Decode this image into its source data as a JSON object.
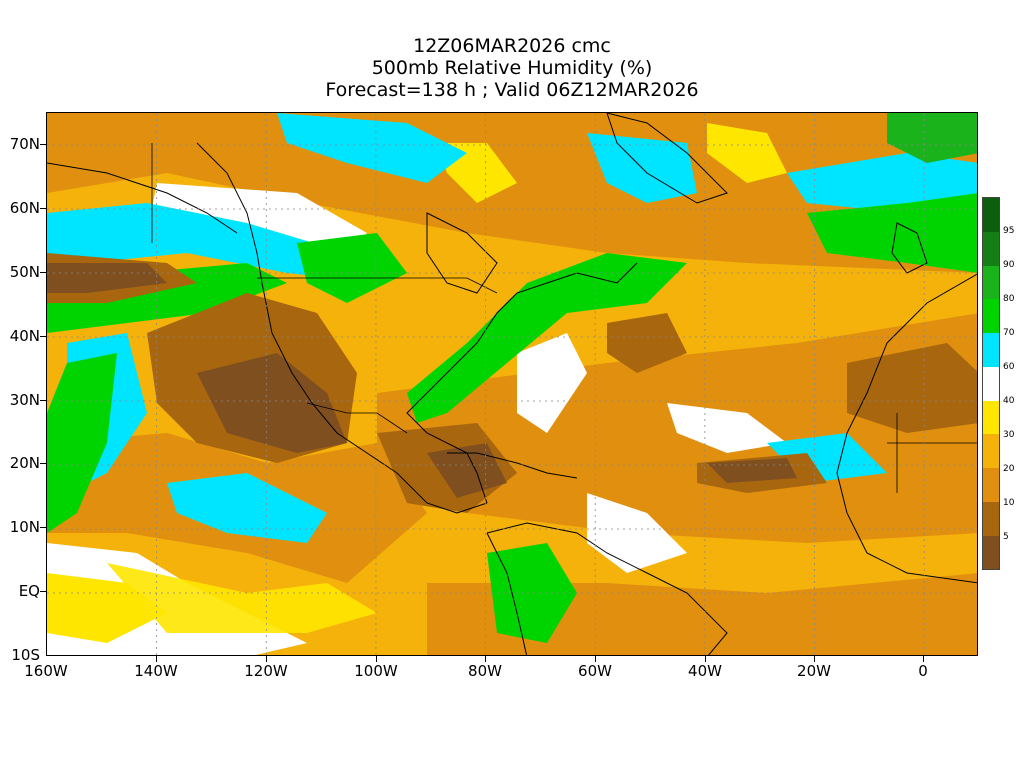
{
  "header": {
    "line1": "12Z06MAR2026 cmc",
    "line2": "500mb Relative Humidity (%)",
    "line3": "Forecast=138 h ; Valid 06Z12MAR2026"
  },
  "axes": {
    "lat_labels": [
      "70N",
      "60N",
      "50N",
      "40N",
      "30N",
      "20N",
      "10N",
      "EQ",
      "10S"
    ],
    "lon_labels": [
      "160W",
      "140W",
      "120W",
      "100W",
      "80W",
      "60W",
      "40W",
      "20W",
      "0"
    ]
  },
  "colorbar": {
    "labels": [
      "95",
      "90",
      "80",
      "70",
      "60",
      "40",
      "30",
      "20",
      "10",
      "5"
    ],
    "colors": [
      "#7f4f1f",
      "#a8660e",
      "#e0900e",
      "#f5b20a",
      "#ffe600",
      "#ffffff",
      "#00e5ff",
      "#00d400",
      "#1bb31b",
      "#157f15",
      "#0c5f0c"
    ]
  },
  "map": {
    "region": "North Atlantic / North America",
    "lon_range": [
      -160,
      10
    ],
    "lat_range": [
      -10,
      75
    ],
    "colors": {
      "dark_brown": "#7f4f1f",
      "brown": "#a8660e",
      "orange": "#e0900e",
      "light_orange": "#f5b20a",
      "yellow": "#ffe600",
      "white": "#ffffff",
      "cyan": "#00e5ff",
      "green": "#00d400",
      "dark_green": "#1bb31b"
    }
  }
}
